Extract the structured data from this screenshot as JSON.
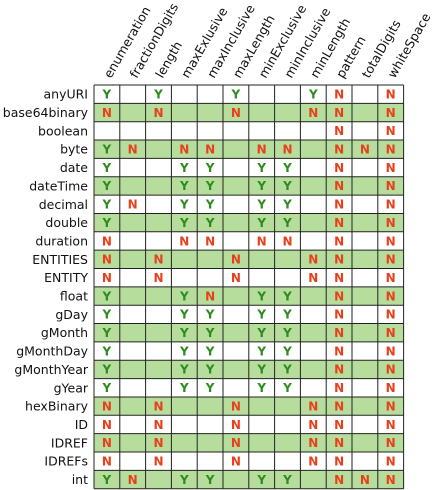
{
  "chart_data": {
    "type": "table",
    "title": "",
    "columns": [
      "enumeration",
      "fractionDigits",
      "length",
      "maxExlusive",
      "maxInclusive",
      "maxLength",
      "minExclusive",
      "minInclusive",
      "minLength",
      "pattern",
      "totalDigits",
      "whiteSpace"
    ],
    "rows": [
      {
        "label": "anyURI",
        "values": [
          "Y",
          "",
          "Y",
          "",
          "",
          "Y",
          "",
          "",
          "Y",
          "N",
          "",
          "N"
        ]
      },
      {
        "label": "base64binary",
        "values": [
          "N",
          "",
          "N",
          "",
          "",
          "N",
          "",
          "",
          "N",
          "N",
          "",
          "N"
        ]
      },
      {
        "label": "boolean",
        "values": [
          "",
          "",
          "",
          "",
          "",
          "",
          "",
          "",
          "",
          "N",
          "",
          "N"
        ]
      },
      {
        "label": "byte",
        "values": [
          "Y",
          "N",
          "",
          "N",
          "N",
          "",
          "N",
          "N",
          "",
          "N",
          "N",
          "N"
        ]
      },
      {
        "label": "date",
        "values": [
          "Y",
          "",
          "",
          "Y",
          "Y",
          "",
          "Y",
          "Y",
          "",
          "N",
          "",
          "N"
        ]
      },
      {
        "label": "dateTime",
        "values": [
          "Y",
          "",
          "",
          "Y",
          "Y",
          "",
          "Y",
          "Y",
          "",
          "N",
          "",
          "N"
        ]
      },
      {
        "label": "decimal",
        "values": [
          "Y",
          "N",
          "",
          "Y",
          "Y",
          "",
          "Y",
          "Y",
          "",
          "N",
          "",
          "N"
        ]
      },
      {
        "label": "double",
        "values": [
          "Y",
          "",
          "",
          "Y",
          "Y",
          "",
          "Y",
          "Y",
          "",
          "N",
          "",
          "N"
        ]
      },
      {
        "label": "duration",
        "values": [
          "N",
          "",
          "",
          "N",
          "N",
          "",
          "N",
          "N",
          "",
          "N",
          "",
          "N"
        ]
      },
      {
        "label": "ENTITIES",
        "values": [
          "N",
          "",
          "N",
          "",
          "",
          "N",
          "",
          "",
          "N",
          "N",
          "",
          "N"
        ]
      },
      {
        "label": "ENTITY",
        "values": [
          "N",
          "",
          "N",
          "",
          "",
          "N",
          "",
          "",
          "N",
          "N",
          "",
          "N"
        ]
      },
      {
        "label": "float",
        "values": [
          "Y",
          "",
          "",
          "Y",
          "N",
          "",
          "Y",
          "Y",
          "",
          "N",
          "",
          "N"
        ]
      },
      {
        "label": "gDay",
        "values": [
          "Y",
          "",
          "",
          "Y",
          "Y",
          "",
          "Y",
          "Y",
          "",
          "N",
          "",
          "N"
        ]
      },
      {
        "label": "gMonth",
        "values": [
          "Y",
          "",
          "",
          "Y",
          "Y",
          "",
          "Y",
          "Y",
          "",
          "N",
          "",
          "N"
        ]
      },
      {
        "label": "gMonthDay",
        "values": [
          "Y",
          "",
          "",
          "Y",
          "Y",
          "",
          "Y",
          "Y",
          "",
          "N",
          "",
          "N"
        ]
      },
      {
        "label": "gMonthYear",
        "values": [
          "Y",
          "",
          "",
          "Y",
          "Y",
          "",
          "Y",
          "Y",
          "",
          "N",
          "",
          "N"
        ]
      },
      {
        "label": "gYear",
        "values": [
          "Y",
          "",
          "",
          "Y",
          "Y",
          "",
          "Y",
          "Y",
          "",
          "N",
          "",
          "N"
        ]
      },
      {
        "label": "hexBinary",
        "values": [
          "N",
          "",
          "N",
          "",
          "",
          "N",
          "",
          "",
          "N",
          "N",
          "",
          "N"
        ]
      },
      {
        "label": "ID",
        "values": [
          "N",
          "",
          "N",
          "",
          "",
          "N",
          "",
          "",
          "N",
          "N",
          "",
          "N"
        ]
      },
      {
        "label": "IDREF",
        "values": [
          "N",
          "",
          "N",
          "",
          "",
          "N",
          "",
          "",
          "N",
          "N",
          "",
          "N"
        ]
      },
      {
        "label": "IDREFs",
        "values": [
          "N",
          "",
          "N",
          "",
          "",
          "N",
          "",
          "",
          "N",
          "N",
          "",
          "N"
        ]
      },
      {
        "label": "int",
        "values": [
          "Y",
          "N",
          "",
          "Y",
          "Y",
          "",
          "Y",
          "Y",
          "",
          "N",
          "N",
          "N"
        ]
      }
    ],
    "colors": {
      "Y": "#2e8b1e",
      "N": "#e8401c",
      "stripe_even": "#ffffff",
      "stripe_odd": "#b6dd9c",
      "grid": "#222222"
    }
  }
}
